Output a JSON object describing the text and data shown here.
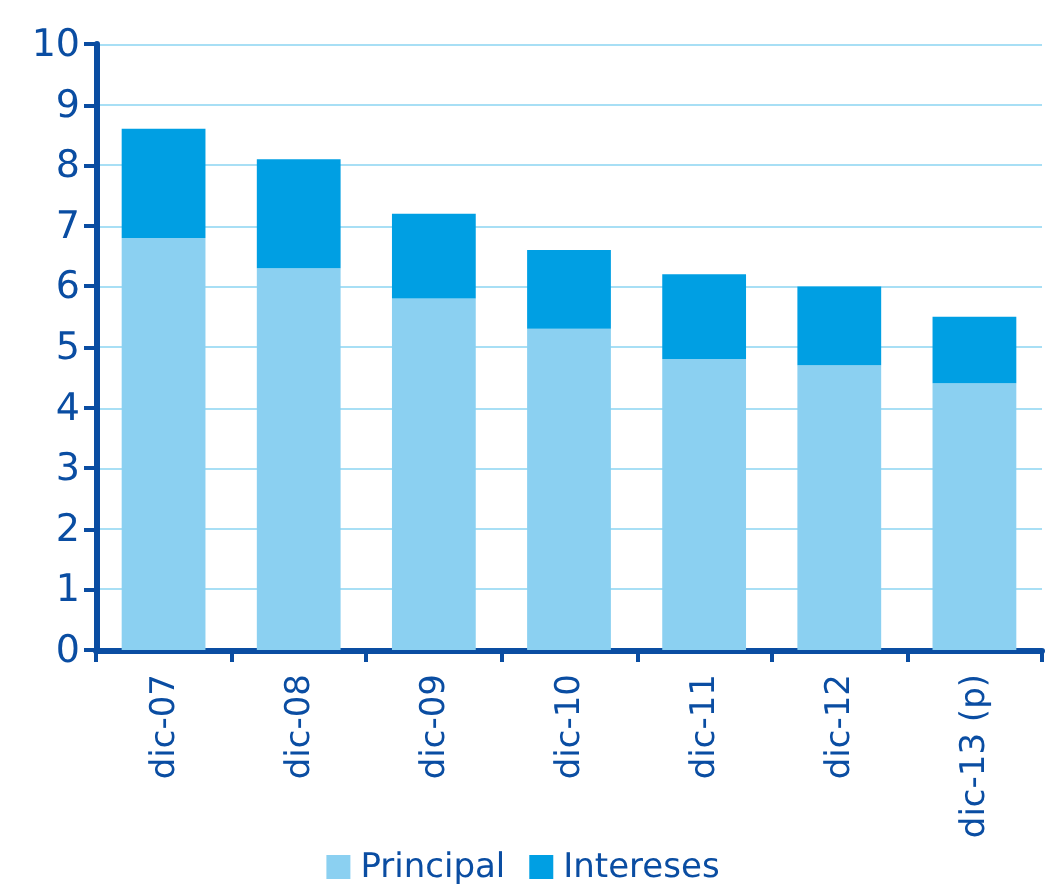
{
  "chart_data": {
    "type": "bar",
    "stacked": true,
    "categories": [
      "dic-07",
      "dic-08",
      "dic-09",
      "dic-10",
      "dic-11",
      "dic-12",
      "dic-13 (p)"
    ],
    "series": [
      {
        "name": "Principal",
        "color": "#8bd0f1",
        "values": [
          6.8,
          6.3,
          5.8,
          5.3,
          4.8,
          4.7,
          4.4
        ]
      },
      {
        "name": "Intereses",
        "color": "#009fe3",
        "values": [
          1.8,
          1.8,
          1.4,
          1.3,
          1.4,
          1.3,
          1.1
        ]
      }
    ],
    "ylim": [
      0,
      10
    ],
    "yticks": [
      0,
      1,
      2,
      3,
      4,
      5,
      6,
      7,
      8,
      9,
      10
    ],
    "grid": "y",
    "legend": "bottom"
  }
}
